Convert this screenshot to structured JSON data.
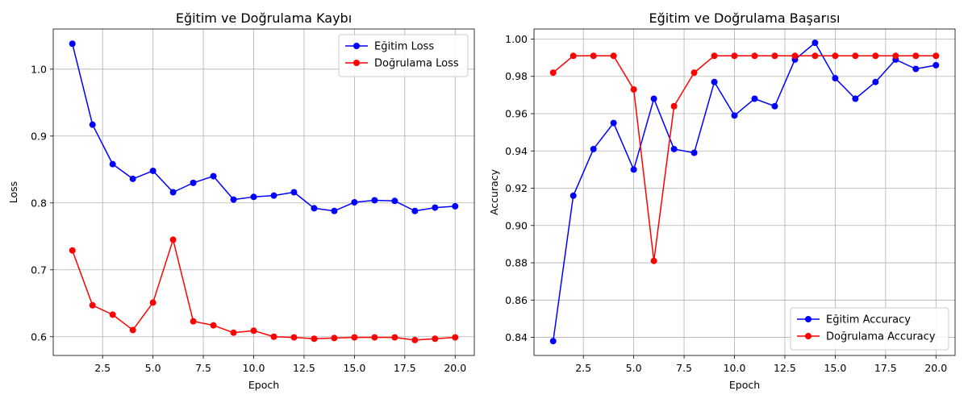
{
  "chart_data": [
    {
      "type": "line",
      "title": "Eğitim ve Doğrulama Kaybı",
      "xlabel": "Epoch",
      "ylabel": "Loss",
      "xlim": [
        0.05,
        20.95
      ],
      "ylim": [
        0.572,
        1.06
      ],
      "xticks": [
        2.5,
        5.0,
        7.5,
        10.0,
        12.5,
        15.0,
        17.5,
        20.0
      ],
      "xtick_labels": [
        "2.5",
        "5.0",
        "7.5",
        "10.0",
        "12.5",
        "15.0",
        "17.5",
        "20.0"
      ],
      "yticks": [
        0.6,
        0.7,
        0.8,
        0.9,
        1.0
      ],
      "ytick_labels": [
        "0.6",
        "0.7",
        "0.8",
        "0.9",
        "1.0"
      ],
      "grid": true,
      "legend_position": "top-right",
      "x": [
        1,
        2,
        3,
        4,
        5,
        6,
        7,
        8,
        9,
        10,
        11,
        12,
        13,
        14,
        15,
        16,
        17,
        18,
        19,
        20
      ],
      "series": [
        {
          "name": "Eğitim Loss",
          "color": "#0000ff",
          "values": [
            1.038,
            0.917,
            0.858,
            0.836,
            0.848,
            0.816,
            0.83,
            0.84,
            0.805,
            0.809,
            0.811,
            0.816,
            0.792,
            0.788,
            0.801,
            0.804,
            0.803,
            0.788,
            0.793,
            0.795
          ]
        },
        {
          "name": "Doğrulama Loss",
          "color": "#ff0000",
          "values": [
            0.729,
            0.647,
            0.633,
            0.61,
            0.651,
            0.745,
            0.623,
            0.617,
            0.606,
            0.609,
            0.6,
            0.599,
            0.597,
            0.598,
            0.599,
            0.599,
            0.599,
            0.595,
            0.597,
            0.599
          ]
        }
      ]
    },
    {
      "type": "line",
      "title": "Eğitim ve Doğrulama Başarısı",
      "xlabel": "Epoch",
      "ylabel": "Accuracy",
      "xlim": [
        0.05,
        20.95
      ],
      "ylim": [
        0.8303,
        1.0054
      ],
      "xticks": [
        2.5,
        5.0,
        7.5,
        10.0,
        12.5,
        15.0,
        17.5,
        20.0
      ],
      "xtick_labels": [
        "2.5",
        "5.0",
        "7.5",
        "10.0",
        "12.5",
        "15.0",
        "17.5",
        "20.0"
      ],
      "yticks": [
        0.84,
        0.86,
        0.88,
        0.9,
        0.92,
        0.94,
        0.96,
        0.98,
        1.0
      ],
      "ytick_labels": [
        "0.84",
        "0.86",
        "0.88",
        "0.90",
        "0.92",
        "0.94",
        "0.96",
        "0.98",
        "1.00"
      ],
      "grid": true,
      "legend_position": "bottom-right",
      "x": [
        1,
        2,
        3,
        4,
        5,
        6,
        7,
        8,
        9,
        10,
        11,
        12,
        13,
        14,
        15,
        16,
        17,
        18,
        19,
        20
      ],
      "series": [
        {
          "name": "Eğitim Accuracy",
          "color": "#0000ff",
          "values": [
            0.838,
            0.916,
            0.941,
            0.955,
            0.93,
            0.968,
            0.941,
            0.939,
            0.977,
            0.959,
            0.968,
            0.964,
            0.989,
            0.998,
            0.979,
            0.968,
            0.977,
            0.989,
            0.984,
            0.986
          ]
        },
        {
          "name": "Doğrulama Accuracy",
          "color": "#ff0000",
          "values": [
            0.982,
            0.991,
            0.991,
            0.991,
            0.973,
            0.881,
            0.964,
            0.982,
            0.991,
            0.991,
            0.991,
            0.991,
            0.991,
            0.991,
            0.991,
            0.991,
            0.991,
            0.991,
            0.991,
            0.991
          ]
        }
      ]
    }
  ]
}
